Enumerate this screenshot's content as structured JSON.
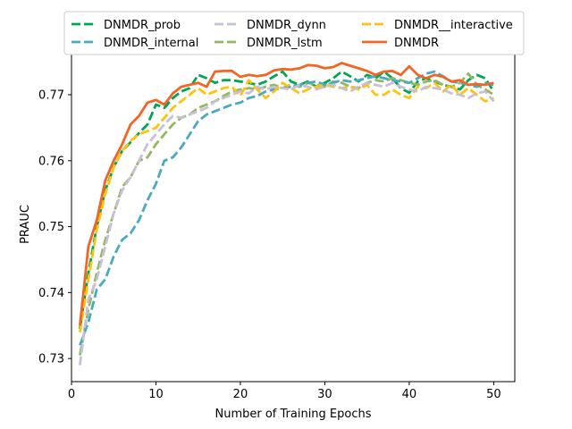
{
  "chart_data": {
    "type": "line",
    "title": "",
    "xlabel": "Number of Training Epochs",
    "ylabel": "PRAUC",
    "xlim": [
      0,
      52.5
    ],
    "ylim": [
      0.7265,
      0.7765
    ],
    "xticks": [
      0,
      10,
      20,
      30,
      40,
      50
    ],
    "yticks": [
      0.73,
      0.74,
      0.75,
      0.76,
      0.77
    ],
    "xtick_labels": [
      "0",
      "10",
      "20",
      "30",
      "40",
      "50"
    ],
    "ytick_labels": [
      "0.73",
      "0.74",
      "0.75",
      "0.76",
      "0.77"
    ],
    "legend_position": "top-center",
    "x": [
      1,
      2,
      3,
      4,
      5,
      6,
      7,
      8,
      9,
      10,
      11,
      12,
      13,
      14,
      15,
      16,
      17,
      18,
      19,
      20,
      21,
      22,
      23,
      24,
      25,
      26,
      27,
      28,
      29,
      30,
      31,
      32,
      33,
      34,
      35,
      36,
      37,
      38,
      39,
      40,
      41,
      42,
      43,
      44,
      45,
      46,
      47,
      48,
      49,
      50
    ],
    "series": [
      {
        "name": "DNMDR_prob",
        "color": "#00a651",
        "dash": "dashed",
        "values": [
          0.7345,
          0.743,
          0.75,
          0.7555,
          0.759,
          0.7615,
          0.7628,
          0.7642,
          0.7655,
          0.7685,
          0.768,
          0.7695,
          0.7705,
          0.771,
          0.773,
          0.7725,
          0.7718,
          0.7722,
          0.7722,
          0.772,
          0.7718,
          0.7715,
          0.772,
          0.7728,
          0.7735,
          0.772,
          0.7715,
          0.772,
          0.7712,
          0.7718,
          0.7725,
          0.7735,
          0.7728,
          0.772,
          0.773,
          0.7725,
          0.7735,
          0.7725,
          0.771,
          0.7703,
          0.772,
          0.7725,
          0.772,
          0.7715,
          0.7712,
          0.7708,
          0.7722,
          0.773,
          0.7725,
          0.7705
        ]
      },
      {
        "name": "DNMDR_lstm",
        "color": "#94b85e",
        "dash": "dashed",
        "values": [
          0.7305,
          0.7375,
          0.743,
          0.748,
          0.752,
          0.756,
          0.7575,
          0.76,
          0.7605,
          0.7625,
          0.764,
          0.7655,
          0.7665,
          0.767,
          0.768,
          0.7685,
          0.769,
          0.7698,
          0.7705,
          0.7708,
          0.771,
          0.7708,
          0.7712,
          0.7715,
          0.771,
          0.7715,
          0.7712,
          0.7718,
          0.7715,
          0.7712,
          0.772,
          0.7718,
          0.7712,
          0.771,
          0.7718,
          0.7722,
          0.772,
          0.7725,
          0.7722,
          0.7718,
          0.7715,
          0.772,
          0.7722,
          0.7715,
          0.7712,
          0.7718,
          0.7732,
          0.7715,
          0.7708,
          0.77
        ]
      },
      {
        "name": "DNMDR_internal",
        "color": "#4ba9c1",
        "dash": "dashed",
        "values": [
          0.732,
          0.7355,
          0.7405,
          0.742,
          0.7455,
          0.748,
          0.749,
          0.751,
          0.754,
          0.7565,
          0.76,
          0.7605,
          0.762,
          0.764,
          0.766,
          0.767,
          0.7675,
          0.768,
          0.7685,
          0.7688,
          0.7695,
          0.7698,
          0.7705,
          0.7708,
          0.771,
          0.7712,
          0.7715,
          0.7718,
          0.772,
          0.7715,
          0.7718,
          0.7722,
          0.772,
          0.7722,
          0.7725,
          0.7728,
          0.7725,
          0.7722,
          0.772,
          0.7718,
          0.7725,
          0.7732,
          0.7735,
          0.7728,
          0.772,
          0.7718,
          0.7715,
          0.7712,
          0.7718,
          0.7715
        ]
      },
      {
        "name": "DNMDR__interactive",
        "color": "#ffc20e",
        "dash": "dashed",
        "values": [
          0.734,
          0.742,
          0.7495,
          0.755,
          0.759,
          0.7615,
          0.763,
          0.764,
          0.7645,
          0.765,
          0.7665,
          0.768,
          0.769,
          0.77,
          0.771,
          0.77,
          0.7705,
          0.771,
          0.7712,
          0.7698,
          0.7722,
          0.7708,
          0.7695,
          0.7705,
          0.7718,
          0.771,
          0.7702,
          0.7708,
          0.7712,
          0.7715,
          0.7712,
          0.771,
          0.7712,
          0.7708,
          0.7715,
          0.77,
          0.77,
          0.7708,
          0.77,
          0.7695,
          0.7712,
          0.771,
          0.7718,
          0.7705,
          0.7715,
          0.77,
          0.771,
          0.77,
          0.769,
          0.7695
        ]
      },
      {
        "name": "DNMDR_dynn",
        "color": "#c8bfd8",
        "dash": "dashed",
        "values": [
          0.729,
          0.739,
          0.742,
          0.747,
          0.752,
          0.7555,
          0.7575,
          0.76,
          0.7625,
          0.764,
          0.7655,
          0.7668,
          0.7665,
          0.767,
          0.7675,
          0.768,
          0.769,
          0.7695,
          0.77,
          0.7705,
          0.7702,
          0.7712,
          0.7708,
          0.7712,
          0.771,
          0.7708,
          0.7715,
          0.7712,
          0.7708,
          0.7712,
          0.7715,
          0.771,
          0.7705,
          0.7712,
          0.7718,
          0.7715,
          0.7712,
          0.7718,
          0.7712,
          0.7708,
          0.7705,
          0.7712,
          0.771,
          0.7708,
          0.7702,
          0.77,
          0.7695,
          0.7702,
          0.7705,
          0.769
        ]
      },
      {
        "name": "DNMDR",
        "color": "#f26522",
        "dash": "solid",
        "values": [
          0.735,
          0.747,
          0.751,
          0.757,
          0.76,
          0.7625,
          0.7655,
          0.7668,
          0.7688,
          0.7692,
          0.7685,
          0.7702,
          0.7712,
          0.7715,
          0.7718,
          0.7712,
          0.7735,
          0.7736,
          0.7736,
          0.7727,
          0.773,
          0.7728,
          0.773,
          0.7737,
          0.7739,
          0.7738,
          0.774,
          0.7745,
          0.7744,
          0.774,
          0.7742,
          0.7748,
          0.7744,
          0.774,
          0.7736,
          0.773,
          0.7735,
          0.7736,
          0.773,
          0.7743,
          0.773,
          0.7725,
          0.773,
          0.7727,
          0.772,
          0.7722,
          0.7715,
          0.7716,
          0.7715,
          0.7718
        ]
      }
    ]
  }
}
